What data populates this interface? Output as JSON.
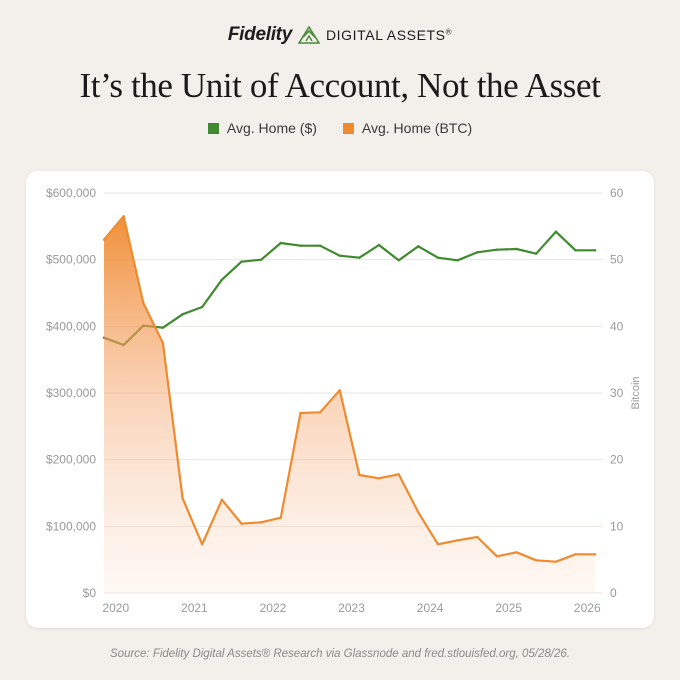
{
  "brand": {
    "name": "Fidelity",
    "division": "DIGITAL ASSETS",
    "registered_mark": "®",
    "logo_icon": "pyramid-logo-icon",
    "logo_color": "#4a8a3a"
  },
  "title": "It’s the Unit of Account, Not the Asset",
  "legend": [
    {
      "label": "Avg. Home ($)",
      "color": "#3f8a2e"
    },
    {
      "label": "Avg. Home (BTC)",
      "color": "#f08a2e"
    }
  ],
  "source": "Source: Fidelity Digital Assets® Research via Glassnode and fred.stlouisfed.org, 05/28/26.",
  "chart_data": {
    "type": "line",
    "title": "It’s the Unit of Account, Not the Asset",
    "xlabel": "",
    "x_ticks": [
      "2020",
      "2021",
      "2022",
      "2023",
      "2024",
      "2025",
      "2026"
    ],
    "xlim": [
      2019.85,
      2026.2
    ],
    "y_left": {
      "label": "",
      "ticks": [
        "$0",
        "$100,000",
        "$200,000",
        "$300,000",
        "$400,000",
        "$500,000",
        "$600,000"
      ],
      "ylim": [
        0,
        600000
      ]
    },
    "y_right": {
      "label": "Bitcoin",
      "ticks": [
        "0",
        "10",
        "20",
        "30",
        "40",
        "50",
        "60"
      ],
      "ylim": [
        0,
        60
      ]
    },
    "grid": true,
    "series": [
      {
        "name": "Avg. Home ($)",
        "axis": "left",
        "style": "line",
        "color": "#3f8a2e",
        "x": [
          2019.85,
          2020.1,
          2020.35,
          2020.6,
          2020.85,
          2021.1,
          2021.35,
          2021.6,
          2021.85,
          2022.1,
          2022.35,
          2022.6,
          2022.85,
          2023.1,
          2023.35,
          2023.6,
          2023.85,
          2024.1,
          2024.35,
          2024.6,
          2024.85,
          2025.1,
          2025.35,
          2025.6,
          2025.85,
          2026.1
        ],
        "values": [
          383000,
          372000,
          401000,
          398000,
          418000,
          429000,
          470000,
          497000,
          500000,
          525000,
          521000,
          521000,
          506000,
          503000,
          522000,
          499000,
          520000,
          503000,
          499000,
          511000,
          515000,
          516000,
          509000,
          542000,
          514000,
          514000
        ]
      },
      {
        "name": "Avg. Home (BTC)",
        "axis": "right",
        "style": "area",
        "color": "#f08a2e",
        "x": [
          2019.85,
          2020.1,
          2020.35,
          2020.6,
          2020.85,
          2021.1,
          2021.35,
          2021.6,
          2021.85,
          2022.1,
          2022.35,
          2022.6,
          2022.85,
          2023.1,
          2023.35,
          2023.6,
          2023.85,
          2024.1,
          2024.35,
          2024.6,
          2024.85,
          2025.1,
          2025.35,
          2025.6,
          2025.85,
          2026.1
        ],
        "values": [
          53,
          56.5,
          43.5,
          37.5,
          14.2,
          7.3,
          14.0,
          10.4,
          10.6,
          11.3,
          27.0,
          27.1,
          30.4,
          17.7,
          17.2,
          17.8,
          12.1,
          7.3,
          7.9,
          8.4,
          5.5,
          6.1,
          4.9,
          4.7,
          5.8,
          5.8
        ]
      }
    ]
  }
}
